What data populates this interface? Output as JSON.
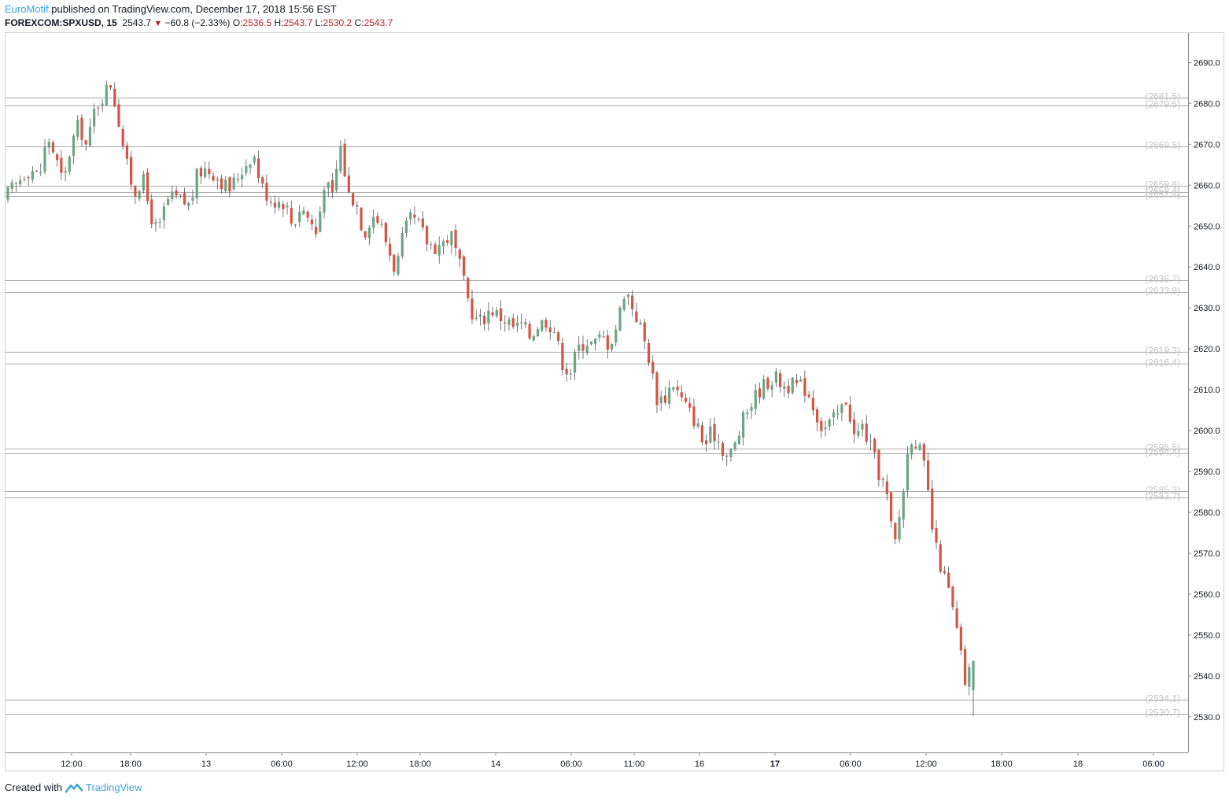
{
  "header": {
    "author": "EuroMotif",
    "published_text": "published on TradingView.com, December 17, 2018 15:56 EST",
    "symbol": "FOREXCOM:SPXUSD, 15",
    "last": "2543.7",
    "change": "−60.8 (−2.33%)",
    "o_label": "O:",
    "o_value": "2536.5",
    "h_label": "H:",
    "h_value": "2543.7",
    "l_label": "L:",
    "l_value": "2530.2",
    "c_label": "C:",
    "c_value": "2543.7"
  },
  "footer": {
    "created_with": "Created with",
    "brand": "TradingView"
  },
  "colors": {
    "up": "#6ba583",
    "down": "#d75442",
    "level_line": "#a9a9a9",
    "level_label": "#c4c4c4",
    "axis_text": "#131722",
    "brand": "#3ba5dc"
  },
  "chart_data": {
    "type": "candlestick",
    "timeframe": "15",
    "y_axis": {
      "range": [
        2521.3,
        2697.2
      ],
      "ticks": [
        "2690.0",
        "2680.0",
        "2670.0",
        "2660.0",
        "2650.0",
        "2640.0",
        "2630.0",
        "2620.0",
        "2610.0",
        "2600.0",
        "2590.0",
        "2580.0",
        "2570.0",
        "2560.0",
        "2550.0",
        "2540.0",
        "2530.0"
      ]
    },
    "x_axis": {
      "labels": [
        {
          "text": "12:00",
          "bold": false
        },
        {
          "text": "18:00",
          "bold": false
        },
        {
          "text": "13",
          "bold": false
        },
        {
          "text": "06:00",
          "bold": false
        },
        {
          "text": "12:00",
          "bold": false
        },
        {
          "text": "18:00",
          "bold": false
        },
        {
          "text": "14",
          "bold": false
        },
        {
          "text": "06:00",
          "bold": false
        },
        {
          "text": "11:00",
          "bold": false
        },
        {
          "text": "16",
          "bold": false
        },
        {
          "text": "17",
          "bold": true
        },
        {
          "text": "06:00",
          "bold": false
        },
        {
          "text": "12:00",
          "bold": false
        },
        {
          "text": "18:00",
          "bold": false
        },
        {
          "text": "18",
          "bold": false
        },
        {
          "text": "06:00",
          "bold": false
        }
      ]
    },
    "levels": [
      {
        "value": 2681.5,
        "label": "(2681.5)"
      },
      {
        "value": 2679.5,
        "label": "(2679.5)"
      },
      {
        "value": 2669.5,
        "label": "(2669.5)"
      },
      {
        "value": 2659.8,
        "label": "(2659.8)"
      },
      {
        "value": 2658.4,
        "label": "(2658.4)"
      },
      {
        "value": 2657.4,
        "label": "(2657.4)"
      },
      {
        "value": 2636.7,
        "label": "(2636.7)"
      },
      {
        "value": 2633.9,
        "label": "(2633.9)"
      },
      {
        "value": 2619.3,
        "label": "(2619.3)"
      },
      {
        "value": 2616.4,
        "label": "(2616.4)"
      },
      {
        "value": 2595.5,
        "label": "(2595.5)"
      },
      {
        "value": 2594.4,
        "label": "(2594.4)"
      },
      {
        "value": 2585.2,
        "label": "(2585.2)"
      },
      {
        "value": 2583.7,
        "label": "(2583.7)"
      },
      {
        "value": 2534.1,
        "label": "(2534.1)"
      },
      {
        "value": 2530.7,
        "label": "(2530.7)"
      }
    ],
    "close_path": [
      2658,
      2660,
      2663,
      2664,
      2662,
      2672,
      2667,
      2660,
      2670,
      2675,
      2669,
      2679,
      2682,
      2685,
      2676,
      2665,
      2658,
      2662,
      2653,
      2648,
      2656,
      2657,
      2656,
      2655,
      2663,
      2664,
      2663,
      2661,
      2659,
      2662,
      2665,
      2668,
      2660,
      2657,
      2656,
      2656,
      2650,
      2655,
      2652,
      2648,
      2661,
      2657,
      2670,
      2658,
      2656,
      2648,
      2653,
      2651,
      2645,
      2639,
      2648,
      2652,
      2650,
      2646,
      2645,
      2646,
      2648,
      2641,
      2633,
      2627,
      2627,
      2630,
      2628,
      2627,
      2625,
      2626,
      2623,
      2626,
      2627,
      2625,
      2617,
      2614,
      2620,
      2622,
      2621,
      2623,
      2621,
      2626,
      2635,
      2630,
      2625,
      2618,
      2608,
      2608,
      2612,
      2608,
      2605,
      2602,
      2596,
      2600,
      2597,
      2593,
      2597,
      2603,
      2607,
      2610,
      2612,
      2613,
      2611,
      2611,
      2611,
      2610,
      2605,
      2600,
      2602,
      2604,
      2608,
      2598,
      2601,
      2596,
      2590,
      2585,
      2571,
      2583,
      2599,
      2597,
      2589,
      2573,
      2566,
      2560,
      2550,
      2538,
      2543.7
    ],
    "candle_count": 236
  }
}
